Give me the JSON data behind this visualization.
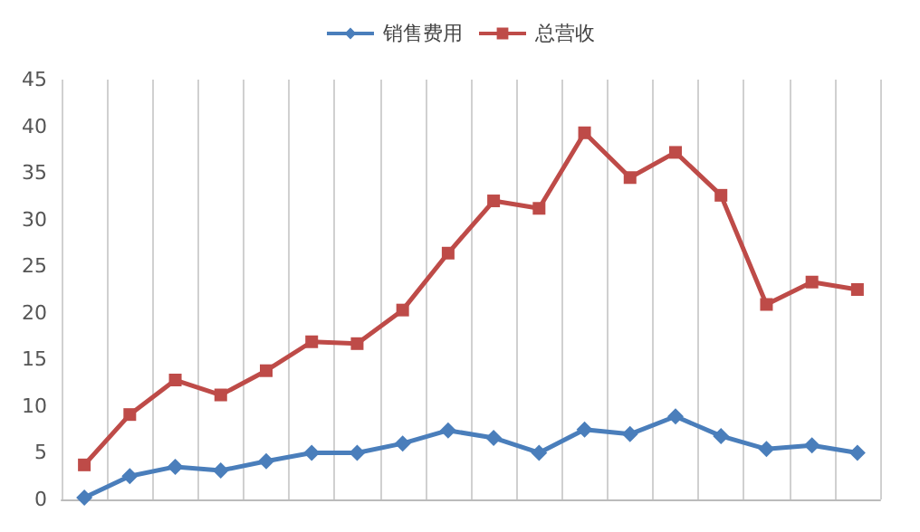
{
  "chart_data": {
    "type": "line",
    "categories": [
      null,
      null,
      null,
      null,
      null,
      null,
      null,
      null,
      null,
      null,
      null,
      null,
      null,
      null,
      null,
      null,
      null,
      null
    ],
    "series": [
      {
        "name": "销售费用",
        "color": "#4a7ebb",
        "marker": "diamond",
        "values": [
          0.2,
          2.5,
          3.5,
          3.1,
          4.1,
          5,
          5,
          6,
          7.4,
          6.6,
          5,
          7.5,
          7,
          8.9,
          6.8,
          5.4,
          5.8,
          5
        ]
      },
      {
        "name": "总营收",
        "color": "#be4b48",
        "marker": "square",
        "values": [
          3.7,
          9.1,
          12.8,
          11.2,
          13.8,
          16.9,
          16.7,
          20.3,
          26.4,
          32,
          31.2,
          39.3,
          34.5,
          37.2,
          32.6,
          20.9,
          23.3,
          22.5
        ]
      }
    ],
    "ylim": [
      0,
      45
    ],
    "yticks": [
      0,
      5,
      10,
      15,
      20,
      25,
      30,
      35,
      40,
      45
    ],
    "grid": "x",
    "legend": "top"
  }
}
